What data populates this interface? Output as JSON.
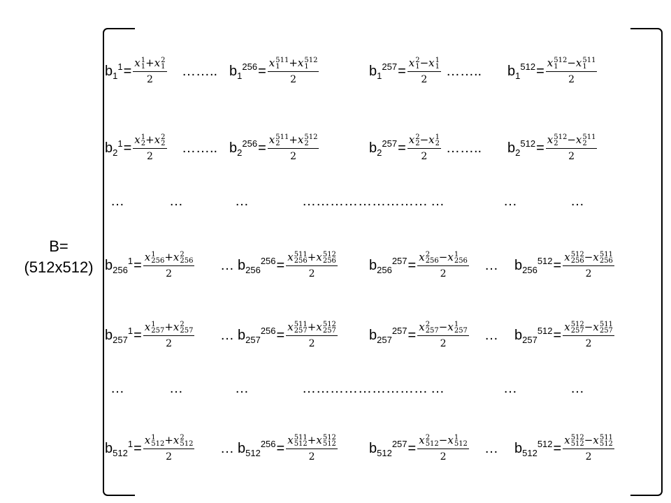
{
  "matrix_label": {
    "name": "B=",
    "size": "(512x512)"
  },
  "fraction_denominator": "2",
  "ellipsis_short": "…",
  "ellipsis_long": "……..",
  "ellipsis_wide": "………………………",
  "rows": [
    {
      "idx": "1",
      "dots": "…….."
    },
    {
      "idx": "2",
      "dots": "…….."
    },
    {
      "idx": "256",
      "dots": "…"
    },
    {
      "idx": "257",
      "dots": "…"
    },
    {
      "idx": "512",
      "dots": "…"
    }
  ],
  "columns": [
    "1",
    "256",
    "257",
    "512"
  ],
  "column_pairs": [
    {
      "a": "1",
      "b": "2",
      "op": "+"
    },
    {
      "a": "511",
      "b": "512",
      "op": "+"
    },
    {
      "a": "2",
      "b": "1",
      "op": "−"
    },
    {
      "a": "512",
      "b": "511",
      "op": "−"
    }
  ],
  "dot_rows": [
    [
      "…",
      "…",
      "…",
      "………………………",
      "…",
      "…",
      "…"
    ],
    [
      "…",
      "…",
      "…",
      "………………………",
      "…",
      "…",
      "…"
    ]
  ]
}
